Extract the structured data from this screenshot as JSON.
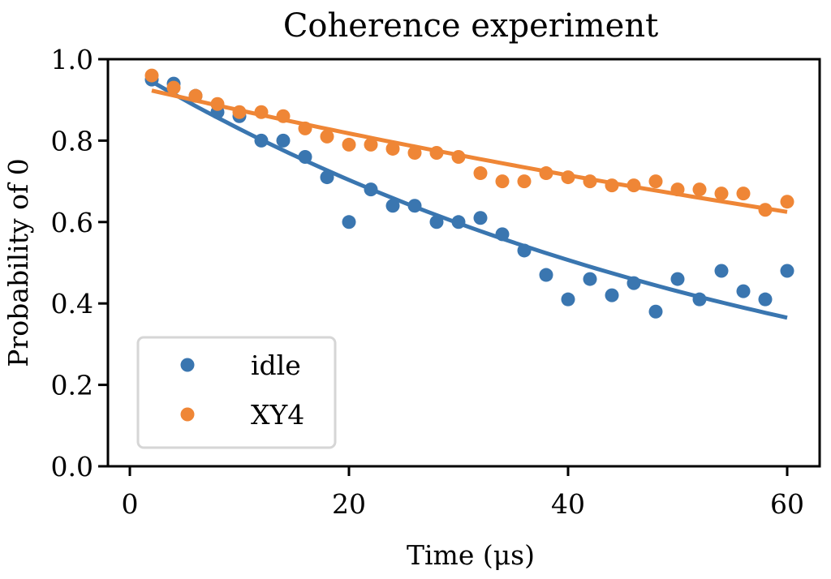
{
  "chart_data": {
    "type": "scatter",
    "title": "Coherence experiment",
    "xlabel": "Time (μs)",
    "ylabel": "Probability of 0",
    "xlim": [
      -1,
      62
    ],
    "ylim": [
      0,
      1.0
    ],
    "xticks": [
      0,
      20,
      40,
      60
    ],
    "xtick_labels": [
      "0",
      "20",
      "40",
      "60"
    ],
    "yticks": [
      0.0,
      0.2,
      0.4,
      0.6,
      0.8,
      1.0
    ],
    "ytick_labels": [
      "0.0",
      "0.2",
      "0.4",
      "0.6",
      "0.8",
      "1.0"
    ],
    "grid": false,
    "legend_position": "lower-left",
    "x": [
      2,
      4,
      6,
      8,
      10,
      12,
      14,
      16,
      18,
      20,
      22,
      24,
      26,
      28,
      30,
      32,
      34,
      36,
      38,
      40,
      42,
      44,
      46,
      48,
      50,
      52,
      54,
      56,
      58,
      60
    ],
    "series": [
      {
        "name": "idle",
        "color": "#3a76b0",
        "values": [
          0.95,
          0.94,
          0.91,
          0.87,
          0.86,
          0.8,
          0.8,
          0.76,
          0.71,
          0.6,
          0.68,
          0.64,
          0.64,
          0.6,
          0.6,
          0.61,
          0.57,
          0.53,
          0.47,
          0.41,
          0.46,
          0.42,
          0.45,
          0.38,
          0.46,
          0.41,
          0.48,
          0.43,
          0.41,
          0.48
        ],
        "fit": {
          "model": "exponential",
          "start": [
            2,
            0.945
          ],
          "end": [
            60,
            0.365
          ]
        }
      },
      {
        "name": "XY4",
        "color": "#ef8636",
        "values": [
          0.96,
          0.93,
          0.91,
          0.89,
          0.87,
          0.87,
          0.86,
          0.83,
          0.81,
          0.79,
          0.79,
          0.78,
          0.77,
          0.77,
          0.76,
          0.72,
          0.7,
          0.7,
          0.72,
          0.71,
          0.7,
          0.69,
          0.69,
          0.7,
          0.68,
          0.68,
          0.67,
          0.67,
          0.63,
          0.65
        ],
        "fit": {
          "model": "exponential",
          "start": [
            2,
            0.923
          ],
          "end": [
            60,
            0.625
          ]
        }
      }
    ]
  }
}
